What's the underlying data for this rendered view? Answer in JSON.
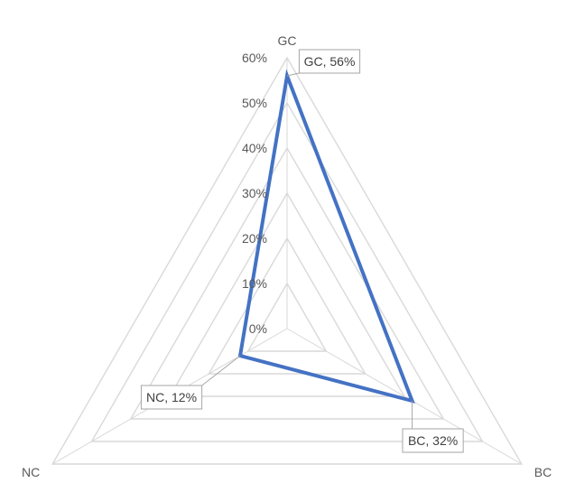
{
  "chart_data": {
    "type": "radar",
    "categories": [
      "GC",
      "BC",
      "NC"
    ],
    "series": [
      {
        "values": [
          56,
          32,
          12
        ],
        "color": "#4472c4"
      }
    ],
    "data_labels": [
      "GC, 56%",
      "BC, 32%",
      "NC, 12%"
    ],
    "ylim": [
      0,
      60
    ],
    "ticks": [
      "0%",
      "10%",
      "20%",
      "30%",
      "40%",
      "50%",
      "60%"
    ],
    "grid": true,
    "legend": false
  }
}
